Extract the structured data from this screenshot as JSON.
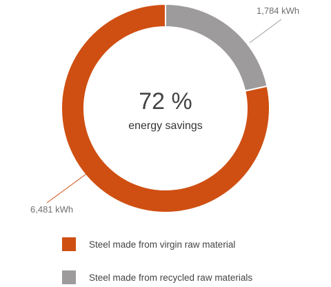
{
  "chart_data": {
    "type": "pie",
    "donut": true,
    "center_value": "72 %",
    "center_caption": "energy savings",
    "slices": [
      {
        "name": "Steel made from recycled raw materials",
        "value": 1784,
        "label": "1,784 kWh",
        "color": "#9e9b9c"
      },
      {
        "name": "Steel made from virgin raw material",
        "value": 6481,
        "label": "6,481 kWh",
        "color": "#cf4f12"
      }
    ],
    "legend_position": "bottom",
    "legend": [
      {
        "label": "Steel made from virgin raw material",
        "color": "#cf4f12"
      },
      {
        "label": "Steel made from recycled raw materials",
        "color": "#9e9b9c"
      }
    ]
  }
}
